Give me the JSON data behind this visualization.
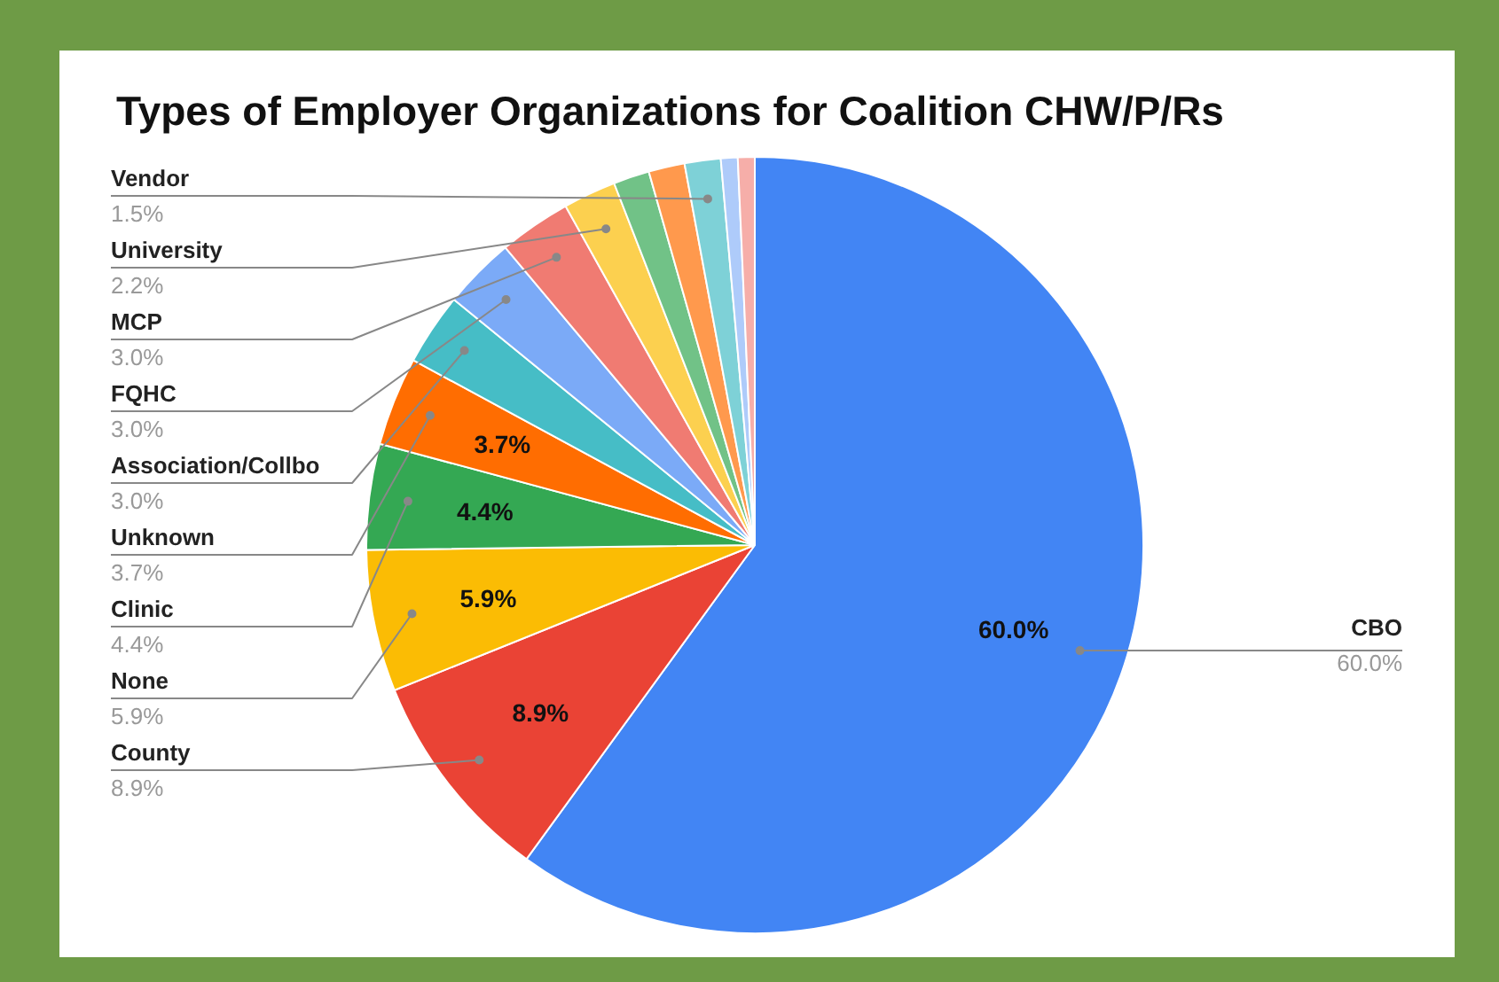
{
  "chart_data": {
    "type": "pie",
    "title": "Types of Employer Organizations for Coalition CHW/P/Rs",
    "categories": [
      "CBO",
      "County",
      "None",
      "Clinic",
      "Unknown",
      "Association/Collbo",
      "FQHC",
      "MCP",
      "University",
      null,
      null,
      "Vendor",
      null,
      null
    ],
    "values": [
      60.0,
      8.9,
      5.9,
      4.4,
      3.7,
      3.0,
      3.0,
      3.0,
      2.2,
      1.5,
      1.5,
      1.5,
      0.7,
      0.7
    ],
    "colors": [
      "#4285f4",
      "#ea4335",
      "#fbbc04",
      "#34a853",
      "#ff6d01",
      "#46bdc6",
      "#7baaf7",
      "#f07b72",
      "#fcd04f",
      "#71c287",
      "#ff994d",
      "#7ed1d7",
      "#aecbfa",
      "#f6aea9"
    ],
    "value_labels": [
      "60.0%",
      "8.9%",
      "5.9%",
      "4.4%",
      "3.7%",
      "3.0%",
      "3.0%",
      "3.0%",
      "2.2%",
      null,
      null,
      "1.5%",
      null,
      null
    ],
    "annotations": [
      {
        "text": "60.0%",
        "x": "CBO"
      },
      {
        "text": "8.9%",
        "x": "County"
      },
      {
        "text": "5.9%",
        "x": "None"
      },
      {
        "text": "4.4%",
        "x": "Clinic"
      },
      {
        "text": "3.7%",
        "x": "Unknown"
      }
    ]
  }
}
